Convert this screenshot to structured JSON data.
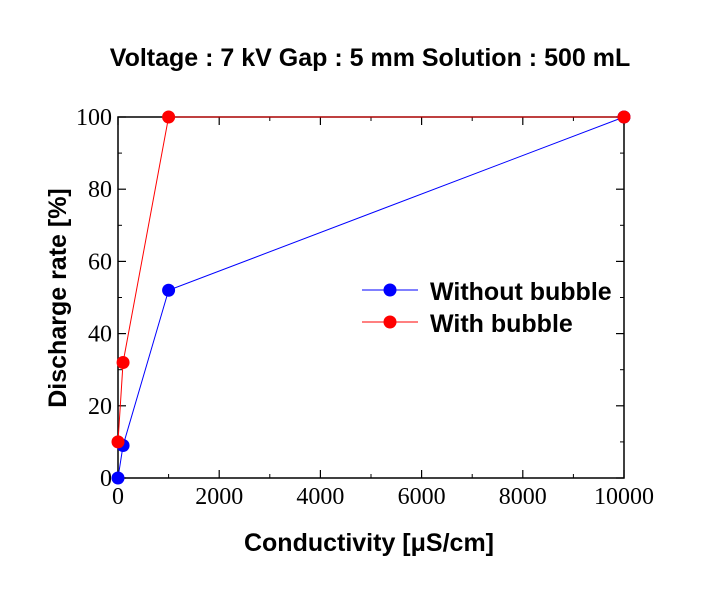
{
  "chart_data": {
    "type": "line",
    "title": "Voltage : 7 kV Gap : 5 mm Solution : 500 mL",
    "xlabel": "Conductivity [μS/cm]",
    "ylabel": "Discharge rate [%]",
    "xlim": [
      0,
      10000
    ],
    "ylim": [
      0,
      100
    ],
    "xticks": [
      0,
      2000,
      4000,
      6000,
      8000,
      10000
    ],
    "yticks": [
      0,
      20,
      40,
      60,
      80,
      100
    ],
    "xtick_labels": [
      "0",
      "2000",
      "4000",
      "6000",
      "8000",
      "10000"
    ],
    "ytick_labels": [
      "0",
      "20",
      "40",
      "60",
      "80",
      "100"
    ],
    "grid": false,
    "legend_position": "center-right",
    "series": [
      {
        "name": "Without bubble",
        "color": "#0000ff",
        "x": [
          0,
          100,
          1000,
          10000
        ],
        "y": [
          0,
          9,
          52,
          100
        ]
      },
      {
        "name": "With bubble",
        "color": "#ff0000",
        "x": [
          0,
          100,
          1000,
          10000
        ],
        "y": [
          10,
          32,
          100,
          100
        ]
      }
    ]
  }
}
